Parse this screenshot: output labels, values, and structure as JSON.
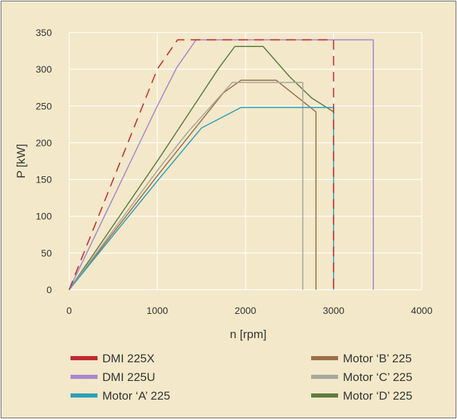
{
  "chart_data": {
    "type": "line",
    "xlabel": "n [rpm]",
    "ylabel": "P [kW]",
    "xlim": [
      0,
      4000
    ],
    "ylim": [
      0,
      350
    ],
    "xticks": [
      0,
      1000,
      2000,
      3000,
      4000
    ],
    "yticks": [
      0,
      50,
      100,
      150,
      200,
      250,
      300,
      350
    ],
    "grid": true,
    "legend_position": "bottom",
    "series": [
      {
        "name": "DMI 225X",
        "color": "#c0282f",
        "dash": true,
        "points": [
          [
            0,
            0
          ],
          [
            1000,
            300
          ],
          [
            1230,
            340
          ],
          [
            3000,
            340
          ],
          [
            3000,
            0
          ]
        ]
      },
      {
        "name": "DMI 225U",
        "color": "#a888cc",
        "dash": false,
        "points": [
          [
            0,
            0
          ],
          [
            1000,
            250
          ],
          [
            1220,
            302
          ],
          [
            1440,
            340
          ],
          [
            3450,
            340
          ],
          [
            3450,
            0
          ]
        ]
      },
      {
        "name": "Motor ‘A’ 225",
        "color": "#2f9fba",
        "dash": false,
        "points": [
          [
            0,
            0
          ],
          [
            1000,
            148
          ],
          [
            1500,
            220
          ],
          [
            1950,
            248
          ],
          [
            3000,
            248
          ],
          [
            3000,
            0
          ]
        ]
      },
      {
        "name": "Motor ‘B’ 225",
        "color": "#9a7048",
        "dash": false,
        "points": [
          [
            0,
            0
          ],
          [
            1000,
            155
          ],
          [
            1750,
            268
          ],
          [
            1950,
            285
          ],
          [
            2350,
            285
          ],
          [
            2800,
            242
          ],
          [
            2800,
            0
          ]
        ]
      },
      {
        "name": "Motor ‘C’ 225",
        "color": "#a8a89c",
        "dash": false,
        "points": [
          [
            0,
            0
          ],
          [
            1000,
            162
          ],
          [
            1350,
            215
          ],
          [
            1850,
            282
          ],
          [
            2650,
            282
          ],
          [
            2650,
            0
          ]
        ]
      },
      {
        "name": "Motor ‘D’ 225",
        "color": "#5f7c40",
        "dash": false,
        "points": [
          [
            0,
            0
          ],
          [
            1000,
            175
          ],
          [
            1700,
            302
          ],
          [
            1880,
            331
          ],
          [
            2200,
            331
          ],
          [
            2500,
            290
          ],
          [
            2750,
            261
          ],
          [
            3000,
            242
          ]
        ]
      }
    ]
  }
}
